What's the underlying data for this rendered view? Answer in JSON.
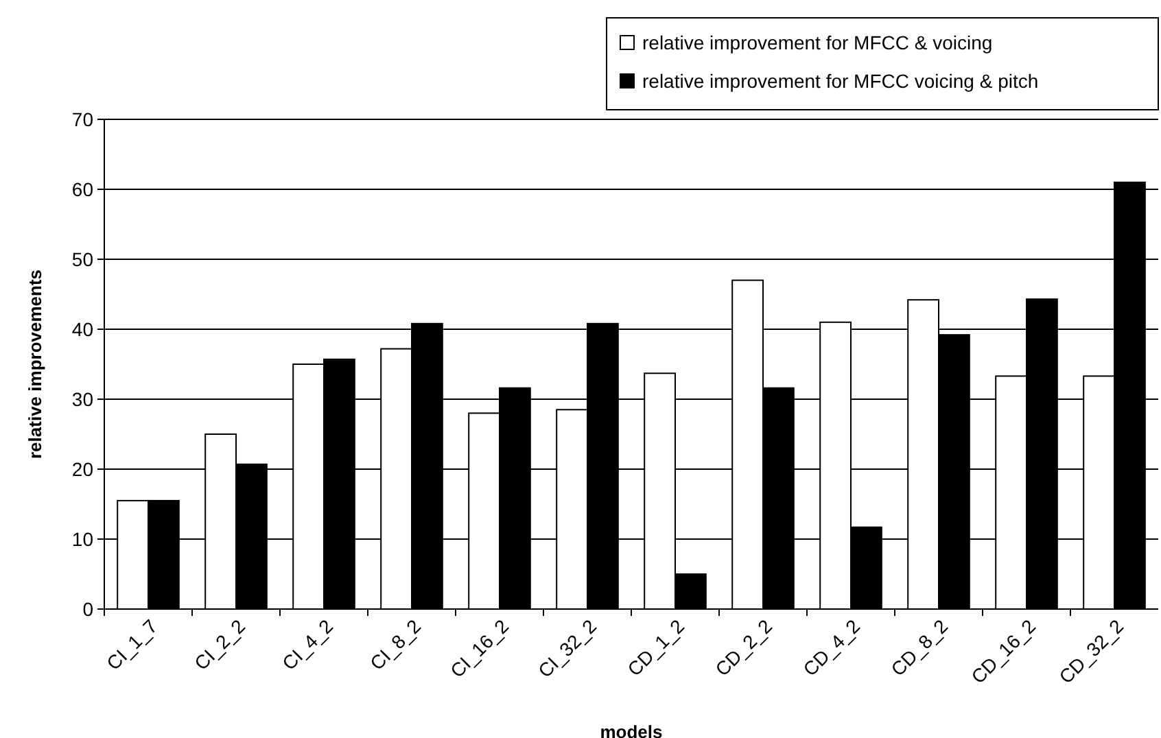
{
  "chart_data": {
    "type": "bar",
    "xlabel": "models",
    "ylabel": "relative improvements",
    "categories": [
      "CI_1_7",
      "CI_2_2",
      "CI_4_2",
      "CI_8_2",
      "CI_16_2",
      "CI_32_2",
      "CD_1_2",
      "CD_2_2",
      "CD_4_2",
      "CD_8_2",
      "CD_16_2",
      "CD_32_2"
    ],
    "series": [
      {
        "name": "relative improvement for MFCC & voicing",
        "color": "#ffffff",
        "values": [
          15.5,
          25,
          35,
          37.2,
          28,
          28.5,
          33.7,
          47,
          41,
          44.2,
          33.3,
          33.3
        ]
      },
      {
        "name": "relative improvement for MFCC voicing & pitch",
        "color": "#000000",
        "values": [
          15.5,
          20.7,
          35.7,
          40.8,
          31.6,
          40.8,
          5,
          31.6,
          11.7,
          39.2,
          44.3,
          61
        ]
      }
    ],
    "ylim": [
      0,
      70
    ],
    "yticks": [
      0,
      10,
      20,
      30,
      40,
      50,
      60,
      70
    ],
    "grid": "y",
    "legend": "top right"
  }
}
